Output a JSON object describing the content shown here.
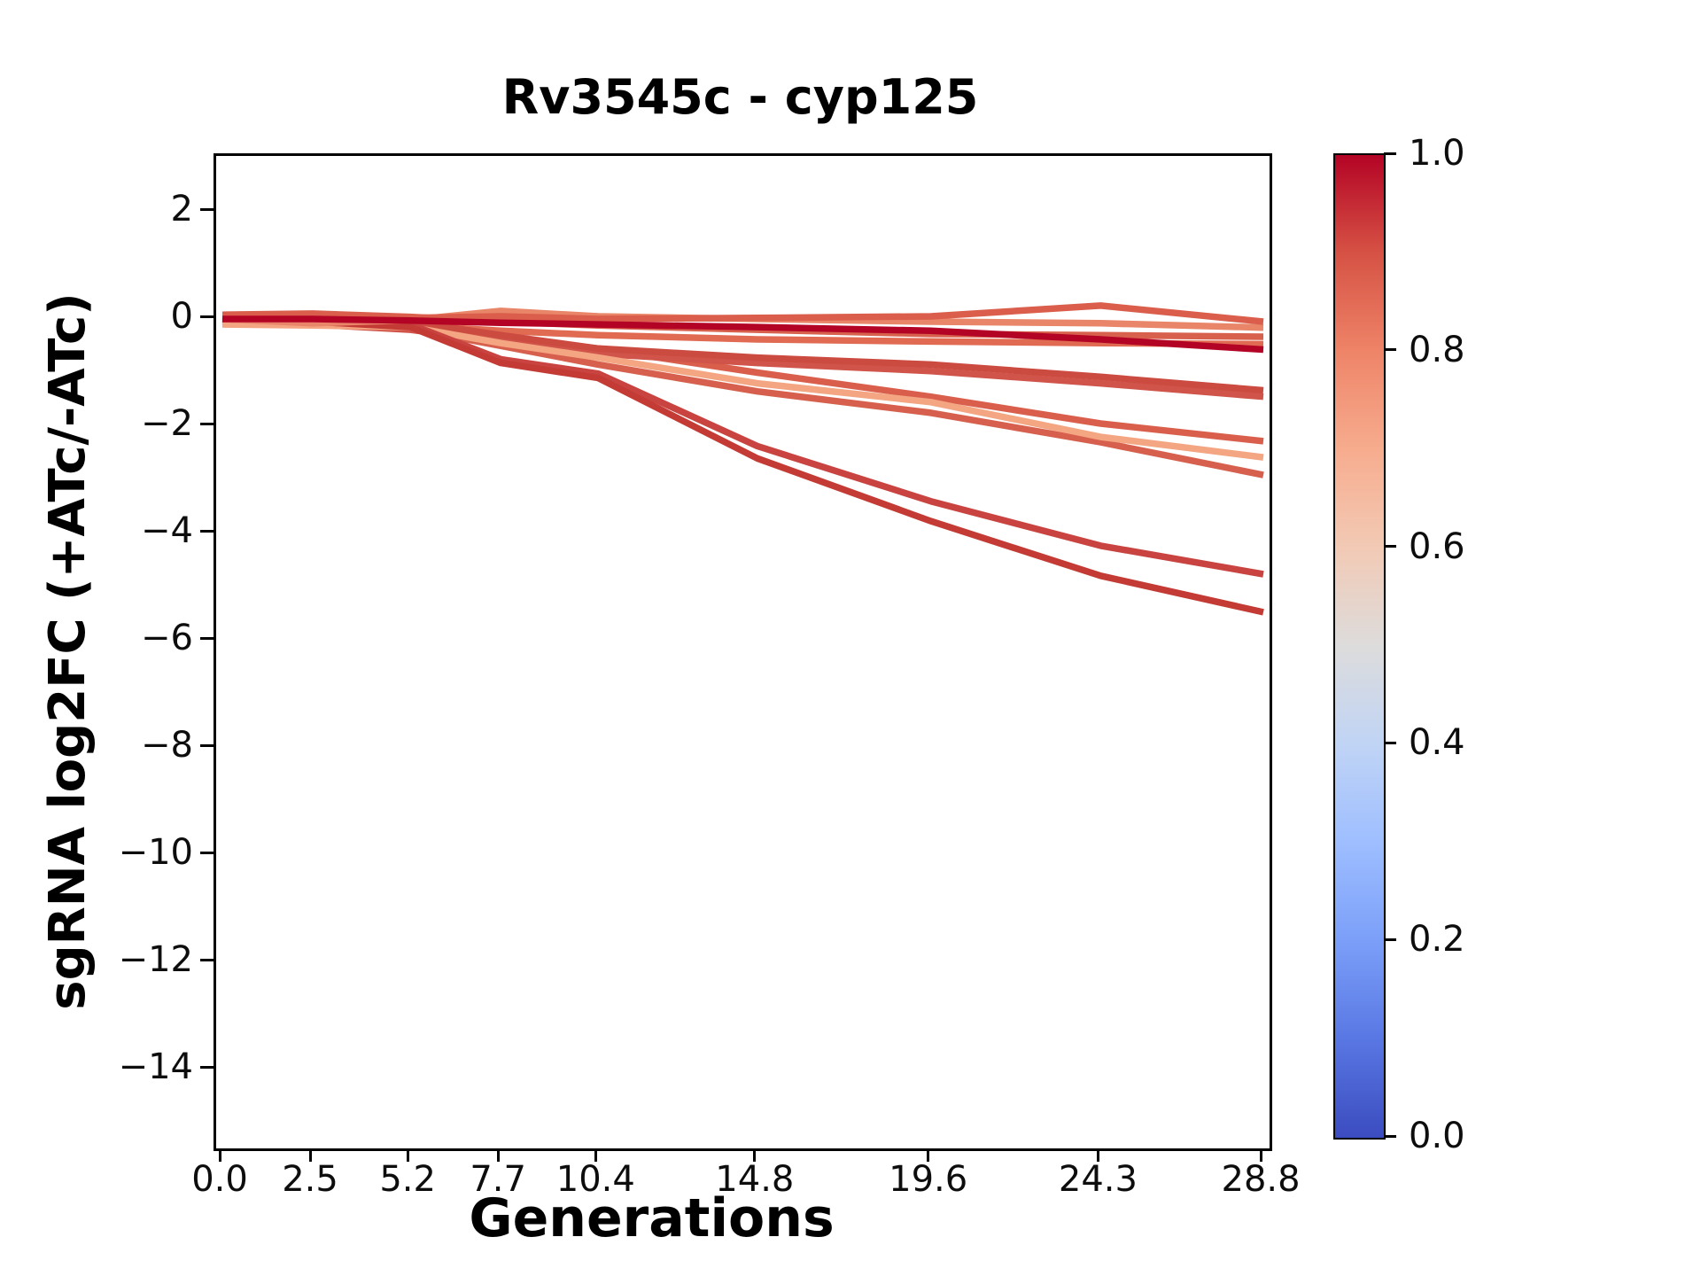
{
  "chart_data": {
    "type": "line",
    "title": "Rv3545c - cyp125",
    "xlabel": "Generations",
    "ylabel": "sgRNA log2FC (+ATc/-ATc)",
    "x": [
      0.0,
      2.5,
      5.2,
      7.7,
      10.4,
      14.8,
      19.6,
      24.3,
      28.8
    ],
    "x_ticks": [
      {
        "v": 0.0,
        "label": "0.0"
      },
      {
        "v": 2.5,
        "label": "2.5"
      },
      {
        "v": 5.2,
        "label": "5.2"
      },
      {
        "v": 7.7,
        "label": "7.7"
      },
      {
        "v": 10.4,
        "label": "10.4"
      },
      {
        "v": 14.8,
        "label": "14.8"
      },
      {
        "v": 19.6,
        "label": "19.6"
      },
      {
        "v": 24.3,
        "label": "24.3"
      },
      {
        "v": 28.8,
        "label": "28.8"
      }
    ],
    "y_ticks": [
      {
        "v": 2,
        "label": "2"
      },
      {
        "v": 0,
        "label": "0"
      },
      {
        "v": -2,
        "label": "−2"
      },
      {
        "v": -4,
        "label": "−4"
      },
      {
        "v": -6,
        "label": "−6"
      },
      {
        "v": -8,
        "label": "−8"
      },
      {
        "v": -10,
        "label": "−10"
      },
      {
        "v": -12,
        "label": "−12"
      },
      {
        "v": -14,
        "label": "−14"
      }
    ],
    "xlim": [
      0,
      29.0
    ],
    "ylim": [
      -15.5,
      3.05
    ],
    "grid": false,
    "legend": "none",
    "series": [
      {
        "name": "line-01",
        "color": "#d8614e",
        "values": [
          0.08,
          0.1,
          0.04,
          -0.05,
          -0.12,
          -0.2,
          -0.28,
          -0.3,
          -0.33
        ]
      },
      {
        "name": "line-02",
        "color": "#e06a52",
        "values": [
          -0.03,
          -0.06,
          -0.12,
          -0.22,
          -0.3,
          -0.38,
          -0.42,
          -0.45,
          -0.47
        ]
      },
      {
        "name": "line-03",
        "color": "#d6604d",
        "values": [
          0.0,
          -0.05,
          -0.18,
          -0.5,
          -0.85,
          -1.35,
          -1.75,
          -2.3,
          -2.91
        ]
      },
      {
        "name": "line-04",
        "color": "#d95f4c",
        "values": [
          0.05,
          0.0,
          -0.1,
          -0.35,
          -0.55,
          -1.0,
          -1.45,
          -1.95,
          -2.28
        ]
      },
      {
        "name": "line-05",
        "color": "#d0544a",
        "values": [
          -0.05,
          -0.1,
          -0.2,
          -0.42,
          -0.65,
          -0.82,
          -0.97,
          -1.2,
          -1.45
        ]
      },
      {
        "name": "line-06",
        "color": "#cc4b41",
        "values": [
          0.05,
          0.03,
          -0.05,
          -0.3,
          -0.55,
          -0.72,
          -0.85,
          -1.08,
          -1.33
        ]
      },
      {
        "name": "line-07",
        "color": "#f4a582",
        "values": [
          -0.1,
          -0.12,
          -0.15,
          -0.45,
          -0.72,
          -1.2,
          -1.55,
          -2.2,
          -2.58
        ]
      },
      {
        "name": "line-08",
        "color": "#c94440",
        "values": [
          0.0,
          -0.02,
          -0.1,
          -0.75,
          -1.02,
          -2.37,
          -3.4,
          -4.23,
          -4.76
        ]
      },
      {
        "name": "line-09",
        "color": "#c43b35",
        "values": [
          0.0,
          -0.05,
          -0.15,
          -0.82,
          -1.1,
          -2.6,
          -3.77,
          -4.79,
          -5.47
        ]
      },
      {
        "name": "line-10",
        "color": "#e98568",
        "values": [
          0.0,
          -0.08,
          -0.02,
          0.15,
          0.05,
          0.0,
          -0.05,
          -0.08,
          -0.16
        ]
      },
      {
        "name": "line-11",
        "color": "#da5e4b",
        "values": [
          0.05,
          0.08,
          0.02,
          0.05,
          0.0,
          0.02,
          0.05,
          0.25,
          -0.05
        ]
      },
      {
        "name": "line-12",
        "color": "#b40426",
        "values": [
          0.0,
          0.0,
          -0.03,
          -0.07,
          -0.1,
          -0.15,
          -0.22,
          -0.38,
          -0.57
        ]
      }
    ],
    "colorbar": {
      "colormap": "coolwarm",
      "range": [
        0.0,
        1.0
      ],
      "ticks": [
        {
          "v": 1.0,
          "label": "1.0"
        },
        {
          "v": 0.8,
          "label": "0.8"
        },
        {
          "v": 0.6,
          "label": "0.6"
        },
        {
          "v": 0.4,
          "label": "0.4"
        },
        {
          "v": 0.2,
          "label": "0.2"
        },
        {
          "v": 0.0,
          "label": "0.0"
        }
      ],
      "stops": [
        {
          "t": 0.0,
          "color": "#3b4cc0"
        },
        {
          "t": 0.1,
          "color": "#5977e3"
        },
        {
          "t": 0.2,
          "color": "#7b9ff9"
        },
        {
          "t": 0.3,
          "color": "#9ebeff"
        },
        {
          "t": 0.4,
          "color": "#c0d4f5"
        },
        {
          "t": 0.5,
          "color": "#dddcdc"
        },
        {
          "t": 0.6,
          "color": "#f2cab5"
        },
        {
          "t": 0.7,
          "color": "#f7ac8e"
        },
        {
          "t": 0.8,
          "color": "#ee8468"
        },
        {
          "t": 0.9,
          "color": "#d65244"
        },
        {
          "t": 1.0,
          "color": "#b40426"
        }
      ]
    }
  }
}
